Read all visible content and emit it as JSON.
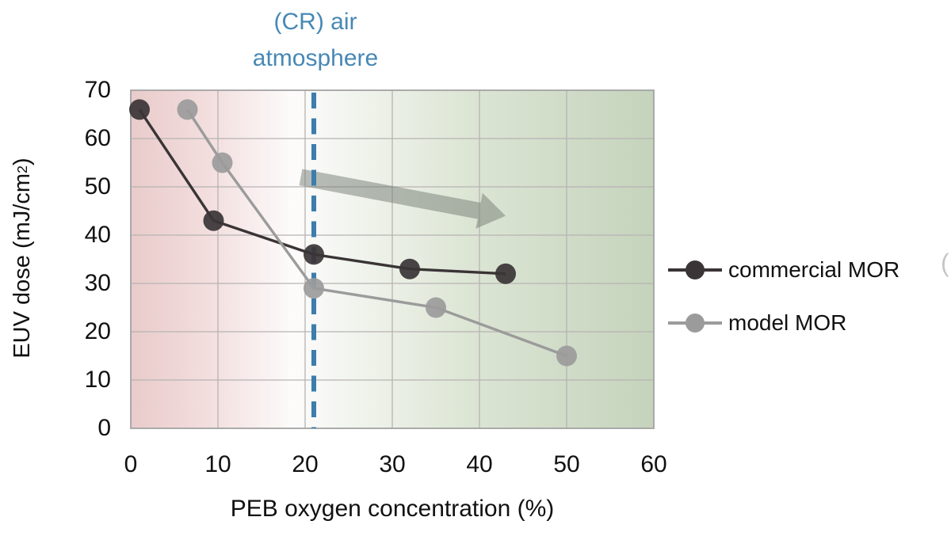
{
  "annotation": {
    "line1": "(CR) air",
    "line2": "atmosphere",
    "color": "#4788b5"
  },
  "chart_data": {
    "type": "line",
    "title": "(CR) air atmosphere",
    "xlabel": "PEB oxygen concentration (%)",
    "ylabel": "EUV dose (mJ/cm2)",
    "ylabel_parts": {
      "pre": "EUV dose (mJ/cm",
      "sup": "2",
      "post": ")"
    },
    "xlim": [
      0,
      60
    ],
    "ylim": [
      0,
      70
    ],
    "x_ticks": [
      0,
      10,
      20,
      30,
      40,
      50,
      60
    ],
    "y_ticks": [
      0,
      10,
      20,
      30,
      40,
      50,
      60,
      70
    ],
    "grid": true,
    "legend_position": "right",
    "series": [
      {
        "name": "commercial MOR",
        "color": "#3a3436",
        "x": [
          1,
          9.5,
          21,
          32,
          43
        ],
        "y": [
          66,
          43,
          36,
          33,
          32
        ]
      },
      {
        "name": "model MOR",
        "color": "#9b9b9b",
        "x": [
          6.5,
          10.5,
          21,
          35,
          50
        ],
        "y": [
          66,
          55,
          29,
          25,
          15
        ]
      }
    ],
    "vline": {
      "x": 21,
      "style": "dashed",
      "color": "#3b7dab",
      "label": "(CR) air atmosphere"
    },
    "arrow": {
      "from_x": 19.5,
      "from_y": 52,
      "to_x": 43,
      "to_y": 44,
      "color_rgba": "rgba(115,123,115,0.5)"
    },
    "background_gradient": [
      "#e9cbcb",
      "#f3dede",
      "#fdfbfb",
      "#f2f5ef",
      "#dce5d4",
      "#c5d3bc"
    ],
    "gridline_color": "#b7b3b3",
    "frame_color": "#a3a3a3"
  },
  "legend": {
    "items": [
      {
        "label": "commercial MOR",
        "color": "#3a3436"
      },
      {
        "label": "model MOR",
        "color": "#9b9b9b"
      }
    ],
    "cutoff_text": "("
  }
}
